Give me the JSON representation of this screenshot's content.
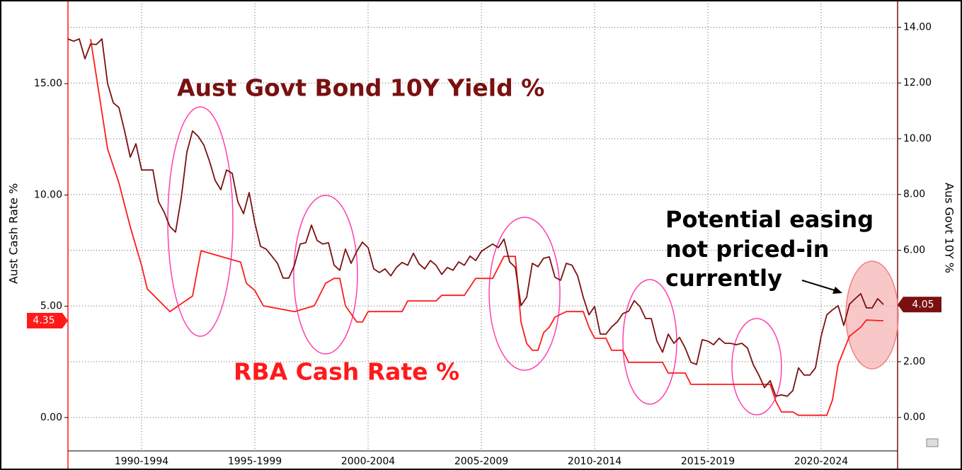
{
  "chart_data": {
    "type": "line",
    "annotations": {
      "bond": "Aust Govt Bond 10Y Yield %",
      "cash": "RBA Cash Rate %",
      "note": [
        "Potential easing",
        "not priced-in",
        "currently"
      ]
    },
    "ylabel": "Aust Cash Rate %",
    "y2label": "Aus Govt 10Y %",
    "xlim": [
      1989.25,
      2025.875
    ],
    "xticks": [
      {
        "value": 1992.5,
        "label": "1990-1994"
      },
      {
        "value": 1997.5,
        "label": "1995-1999"
      },
      {
        "value": 2002.5,
        "label": "2000-2004"
      },
      {
        "value": 2007.5,
        "label": "2005-2009"
      },
      {
        "value": 2012.5,
        "label": "2010-2014"
      },
      {
        "value": 2017.5,
        "label": "2015-2019"
      },
      {
        "value": 2022.5,
        "label": "2020-2024"
      }
    ],
    "ylim": [
      -1.5,
      18.6
    ],
    "yticks": [
      {
        "value": 0,
        "label": "0.00"
      },
      {
        "value": 5,
        "label": "5.00"
      },
      {
        "value": 10,
        "label": "10.00"
      },
      {
        "value": 15,
        "label": "15.00"
      }
    ],
    "y2lim": [
      -1.2,
      14.85
    ],
    "y2ticks": [
      {
        "value": 0,
        "label": "0.00"
      },
      {
        "value": 2,
        "label": "2.00"
      },
      {
        "value": 4,
        "label": "4.00"
      },
      {
        "value": 6,
        "label": "6.00"
      },
      {
        "value": 8,
        "label": "8.00"
      },
      {
        "value": 10,
        "label": "10.00"
      },
      {
        "value": 12,
        "label": "12.00"
      },
      {
        "value": 14,
        "label": "14.00"
      }
    ],
    "grid": true,
    "series": [
      {
        "name": "RBA Cash Rate %",
        "color": "#ff1a1a",
        "axis": "y",
        "last_value": 4.35,
        "x": [
          1990.25,
          1991,
          1991.5,
          1992,
          1992.5,
          1992.75,
          1993.75,
          1994.75,
          1995.125,
          1996.875,
          1997.125,
          1997.5,
          1997.875,
          1999.25,
          2000.125,
          2000.625,
          2001,
          2001.25,
          2001.5,
          2002,
          2002.25,
          2002.5,
          2004,
          2004.25,
          2005.5,
          2005.75,
          2006.75,
          2007.25,
          2008,
          2008.5,
          2009,
          2009.25,
          2009.5,
          2009.75,
          2010,
          2010.25,
          2010.5,
          2010.75,
          2011.25,
          2012,
          2012.25,
          2012.5,
          2013,
          2013.25,
          2013.75,
          2014,
          2015.5,
          2015.75,
          2016.5,
          2016.75,
          2020.25,
          2020.5,
          2020.75,
          2021.25,
          2021.5,
          2022.75,
          2023,
          2023.25,
          2023.75,
          2024.25,
          2024.5,
          2025.25
        ],
        "values": [
          17.0,
          12.06,
          10.54,
          8.57,
          6.83,
          5.78,
          4.76,
          5.46,
          7.49,
          6.98,
          6.03,
          5.71,
          5.02,
          4.76,
          5.02,
          6.03,
          6.25,
          6.25,
          5.02,
          4.29,
          4.29,
          4.76,
          4.76,
          5.24,
          5.24,
          5.49,
          5.49,
          6.25,
          6.25,
          7.24,
          7.24,
          4.29,
          3.33,
          3.02,
          3.02,
          3.81,
          4.06,
          4.51,
          4.76,
          4.76,
          4.06,
          3.56,
          3.56,
          3.02,
          3.02,
          2.48,
          2.48,
          2.0,
          2.0,
          1.49,
          1.49,
          0.73,
          0.25,
          0.25,
          0.1,
          0.1,
          0.79,
          2.38,
          3.65,
          4.06,
          4.38,
          4.35
        ]
      },
      {
        "name": "Aust Govt Bond 10Y Yield %",
        "color": "#7a1010",
        "axis": "y2",
        "last_value": 4.05,
        "x": [
          1989.25,
          1989.5,
          1989.75,
          1990,
          1990.25,
          1990.5,
          1990.75,
          1991,
          1991.25,
          1991.5,
          1991.75,
          1992,
          1992.25,
          1992.5,
          1992.75,
          1993,
          1993.25,
          1993.5,
          1993.75,
          1994,
          1994.25,
          1994.5,
          1994.75,
          1995,
          1995.25,
          1995.5,
          1995.75,
          1996,
          1996.25,
          1996.5,
          1996.75,
          1997,
          1997.25,
          1997.5,
          1997.75,
          1998,
          1998.25,
          1998.5,
          1998.75,
          1999,
          1999.25,
          1999.5,
          1999.75,
          2000,
          2000.25,
          2000.5,
          2000.75,
          2001,
          2001.25,
          2001.5,
          2001.75,
          2002,
          2002.25,
          2002.5,
          2002.75,
          2003,
          2003.25,
          2003.5,
          2003.75,
          2004,
          2004.25,
          2004.5,
          2004.75,
          2005,
          2005.25,
          2005.5,
          2005.75,
          2006,
          2006.25,
          2006.5,
          2006.75,
          2007,
          2007.25,
          2007.5,
          2007.75,
          2008,
          2008.25,
          2008.5,
          2008.75,
          2009,
          2009.25,
          2009.5,
          2009.75,
          2010,
          2010.25,
          2010.5,
          2010.75,
          2011,
          2011.25,
          2011.5,
          2011.75,
          2012,
          2012.25,
          2012.5,
          2012.75,
          2013,
          2013.25,
          2013.5,
          2013.75,
          2014,
          2014.25,
          2014.5,
          2014.75,
          2015,
          2015.25,
          2015.5,
          2015.75,
          2016,
          2016.25,
          2016.5,
          2016.75,
          2017,
          2017.25,
          2017.5,
          2017.75,
          2018,
          2018.25,
          2018.5,
          2018.75,
          2019,
          2019.25,
          2019.5,
          2019.75,
          2020,
          2020.25,
          2020.5,
          2020.75,
          2021,
          2021.25,
          2021.5,
          2021.75,
          2022,
          2022.25,
          2022.5,
          2022.75,
          2023,
          2023.25,
          2023.5,
          2023.75,
          2024,
          2024.25,
          2024.5,
          2024.75,
          2025,
          2025.25
        ],
        "values": [
          13.58,
          13.5,
          13.58,
          12.87,
          13.4,
          13.38,
          13.58,
          11.98,
          11.29,
          11.12,
          10.28,
          9.34,
          9.82,
          8.88,
          8.88,
          8.88,
          7.74,
          7.36,
          6.85,
          6.65,
          7.87,
          9.52,
          10.28,
          10.08,
          9.77,
          9.19,
          8.5,
          8.17,
          8.88,
          8.76,
          7.74,
          7.31,
          8.07,
          6.98,
          6.14,
          6.04,
          5.79,
          5.53,
          5.0,
          5.0,
          5.46,
          6.22,
          6.27,
          6.9,
          6.35,
          6.22,
          6.27,
          5.46,
          5.28,
          6.04,
          5.53,
          5.96,
          6.29,
          6.09,
          5.33,
          5.2,
          5.33,
          5.08,
          5.38,
          5.56,
          5.46,
          5.89,
          5.51,
          5.33,
          5.63,
          5.46,
          5.13,
          5.38,
          5.28,
          5.58,
          5.46,
          5.79,
          5.63,
          5.96,
          6.09,
          6.22,
          6.09,
          6.4,
          5.58,
          5.38,
          4.01,
          4.31,
          5.53,
          5.41,
          5.71,
          5.76,
          5.03,
          4.92,
          5.53,
          5.46,
          5.08,
          4.31,
          3.68,
          3.98,
          2.99,
          2.99,
          3.25,
          3.43,
          3.73,
          3.81,
          4.19,
          3.98,
          3.55,
          3.55,
          2.74,
          2.34,
          2.99,
          2.66,
          2.87,
          2.49,
          1.98,
          1.9,
          2.79,
          2.74,
          2.61,
          2.84,
          2.66,
          2.66,
          2.61,
          2.66,
          2.49,
          1.9,
          1.52,
          1.07,
          1.32,
          0.76,
          0.81,
          0.76,
          0.96,
          1.78,
          1.52,
          1.52,
          1.78,
          2.92,
          3.68,
          3.86,
          4.01,
          3.3,
          4.06,
          4.26,
          4.44,
          3.93,
          3.93,
          4.26,
          4.05
        ]
      }
    ]
  }
}
